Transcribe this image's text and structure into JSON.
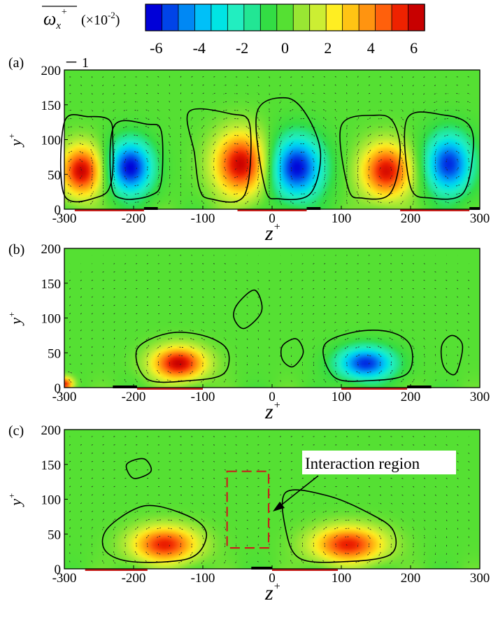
{
  "colorbar": {
    "label": "ω",
    "label_sub": "x",
    "label_sup": "+",
    "scale": "(×10",
    "scale_exp": "-2",
    "scale_close": ")",
    "min": -6.5,
    "max": 6.5,
    "levels": 17,
    "ticks": [
      -6,
      -4,
      -2,
      0,
      2,
      4,
      6
    ],
    "tick_labels": [
      "-6",
      "-4",
      "-2",
      "0",
      "2",
      "4",
      "6"
    ],
    "colors": [
      "#0000d8",
      "#0044e8",
      "#0088f4",
      "#00c0f8",
      "#00e4e4",
      "#22eec0",
      "#22e694",
      "#33dd44",
      "#55e033",
      "#99e633",
      "#ccee33",
      "#ffee22",
      "#ffc414",
      "#ff9410",
      "#ff600c",
      "#ee2200",
      "#c80000"
    ]
  },
  "chart_data": [
    {
      "panel_label": "(a)",
      "panel_annotation": "－ 1",
      "type": "heatmap",
      "title": "",
      "xlabel": "z",
      "xlabel_sup": "+",
      "ylabel": "y",
      "ylabel_sup": "+",
      "xlim": [
        -300,
        300
      ],
      "ylim": [
        0,
        200
      ],
      "xticks": [
        -300,
        -200,
        -100,
        0,
        100,
        200,
        300
      ],
      "xtick_labels": [
        "-300",
        "-200",
        "-100",
        "0",
        "100",
        "200",
        "300"
      ],
      "yticks": [
        0,
        50,
        100,
        150,
        200
      ],
      "ytick_labels": [
        "0",
        "50",
        "100",
        "150",
        "200"
      ],
      "vortices": [
        {
          "z": -275,
          "y": 55,
          "rz": 35,
          "ry": 42,
          "value": 6.5
        },
        {
          "z": -205,
          "y": 60,
          "rz": 38,
          "ry": 45,
          "value": -6.5
        },
        {
          "z": -45,
          "y": 65,
          "rz": 45,
          "ry": 52,
          "value": 6.5
        },
        {
          "z": 35,
          "y": 60,
          "rz": 45,
          "ry": 52,
          "value": -6.5
        },
        {
          "z": 165,
          "y": 55,
          "rz": 42,
          "ry": 45,
          "value": 6.2
        },
        {
          "z": 255,
          "y": 65,
          "rz": 40,
          "ry": 50,
          "value": -6.0
        }
      ],
      "contours": [
        [
          [
            -300,
            125
          ],
          [
            -265,
            133
          ],
          [
            -235,
            128
          ],
          [
            -230,
            100
          ],
          [
            -232,
            40
          ],
          [
            -250,
            18
          ],
          [
            -300,
            20
          ]
        ],
        [
          [
            -228,
            120
          ],
          [
            -180,
            122
          ],
          [
            -160,
            112
          ],
          [
            -160,
            40
          ],
          [
            -175,
            20
          ],
          [
            -215,
            15
          ],
          [
            -232,
            35
          ]
        ],
        [
          [
            -120,
            140
          ],
          [
            -60,
            137
          ],
          [
            -32,
            120
          ],
          [
            -40,
            20
          ],
          [
            -90,
            15
          ],
          [
            -105,
            30
          ],
          [
            -112,
            80
          ]
        ],
        [
          [
            -22,
            138
          ],
          [
            20,
            160
          ],
          [
            50,
            135
          ],
          [
            70,
            80
          ],
          [
            55,
            22
          ],
          [
            10,
            15
          ],
          [
            -10,
            30
          ]
        ],
        [
          [
            100,
            120
          ],
          [
            150,
            135
          ],
          [
            175,
            125
          ],
          [
            185,
            80
          ],
          [
            170,
            22
          ],
          [
            130,
            16
          ],
          [
            110,
            30
          ]
        ],
        [
          [
            195,
            130
          ],
          [
            250,
            135
          ],
          [
            285,
            120
          ],
          [
            290,
            80
          ],
          [
            275,
            22
          ],
          [
            230,
            16
          ],
          [
            200,
            32
          ]
        ]
      ],
      "wall_red": [
        [
          -285,
          -185
        ],
        [
          -50,
          50
        ],
        [
          185,
          285
        ]
      ],
      "wall_black": [
        [
          -185,
          -165
        ],
        [
          50,
          70
        ],
        [
          285,
          300
        ]
      ]
    },
    {
      "panel_label": "(b)",
      "type": "heatmap",
      "title": "",
      "xlabel": "z",
      "xlabel_sup": "+",
      "ylabel": "y",
      "ylabel_sup": "+",
      "xlim": [
        -300,
        300
      ],
      "ylim": [
        0,
        200
      ],
      "xticks": [
        -300,
        -200,
        -100,
        0,
        100,
        200,
        300
      ],
      "xtick_labels": [
        "-300",
        "-200",
        "-100",
        "0",
        "100",
        "200",
        "300"
      ],
      "yticks": [
        0,
        50,
        100,
        150,
        200
      ],
      "ytick_labels": [
        "0",
        "50",
        "100",
        "150",
        "200"
      ],
      "vortices": [
        {
          "z": -135,
          "y": 35,
          "rz": 45,
          "ry": 28,
          "value": 6.5
        },
        {
          "z": 135,
          "y": 35,
          "rz": 48,
          "ry": 28,
          "value": -6.0
        },
        {
          "z": -300,
          "y": 5,
          "rz": 15,
          "ry": 12,
          "value": 6.0
        }
      ],
      "contours": [
        [
          [
            -195,
            55
          ],
          [
            -150,
            78
          ],
          [
            -100,
            75
          ],
          [
            -65,
            55
          ],
          [
            -70,
            20
          ],
          [
            -120,
            10
          ],
          [
            -180,
            12
          ]
        ],
        [
          [
            75,
            60
          ],
          [
            120,
            80
          ],
          [
            170,
            80
          ],
          [
            200,
            60
          ],
          [
            195,
            20
          ],
          [
            140,
            10
          ],
          [
            90,
            15
          ]
        ],
        [
          [
            -50,
            120
          ],
          [
            -25,
            140
          ],
          [
            -15,
            110
          ],
          [
            -40,
            85
          ],
          [
            -55,
            100
          ]
        ],
        [
          [
            15,
            60
          ],
          [
            35,
            70
          ],
          [
            45,
            50
          ],
          [
            30,
            30
          ],
          [
            15,
            40
          ]
        ],
        [
          [
            245,
            60
          ],
          [
            260,
            75
          ],
          [
            275,
            60
          ],
          [
            265,
            20
          ],
          [
            248,
            30
          ]
        ]
      ],
      "wall_red": [
        [
          -195,
          -100
        ],
        [
          100,
          195
        ]
      ],
      "wall_black": [
        [
          -230,
          -195
        ],
        [
          195,
          230
        ]
      ]
    },
    {
      "panel_label": "(c)",
      "type": "heatmap",
      "title": "",
      "xlabel": "z",
      "xlabel_sup": "+",
      "ylabel": "y",
      "ylabel_sup": "+",
      "xlim": [
        -300,
        300
      ],
      "ylim": [
        0,
        200
      ],
      "xticks": [
        -300,
        -200,
        -100,
        0,
        100,
        200,
        300
      ],
      "xtick_labels": [
        "-300",
        "-200",
        "-100",
        "0",
        "100",
        "200",
        "300"
      ],
      "yticks": [
        0,
        50,
        100,
        150,
        200
      ],
      "ytick_labels": [
        "0",
        "50",
        "100",
        "150",
        "200"
      ],
      "annotation": "Interaction region",
      "interaction_box": {
        "z": [
          -65,
          -5
        ],
        "y": [
          30,
          140
        ]
      },
      "vortices": [
        {
          "z": -155,
          "y": 35,
          "rz": 55,
          "ry": 30,
          "value": 5.8
        },
        {
          "z": 110,
          "y": 35,
          "rz": 60,
          "ry": 30,
          "value": 5.8
        }
      ],
      "contours": [
        [
          [
            -240,
            55
          ],
          [
            -200,
            85
          ],
          [
            -165,
            90
          ],
          [
            -110,
            70
          ],
          [
            -95,
            45
          ],
          [
            -120,
            15
          ],
          [
            -200,
            10
          ],
          [
            -240,
            25
          ]
        ],
        [
          [
            20,
            110
          ],
          [
            80,
            105
          ],
          [
            140,
            80
          ],
          [
            175,
            55
          ],
          [
            170,
            20
          ],
          [
            100,
            10
          ],
          [
            40,
            15
          ],
          [
            20,
            55
          ]
        ],
        [
          [
            -210,
            150
          ],
          [
            -185,
            158
          ],
          [
            -175,
            140
          ],
          [
            -200,
            130
          ]
        ]
      ],
      "wall_red": [
        [
          -270,
          -180
        ],
        [
          0,
          95
        ]
      ],
      "wall_black": [
        [
          -30,
          0
        ]
      ]
    }
  ]
}
